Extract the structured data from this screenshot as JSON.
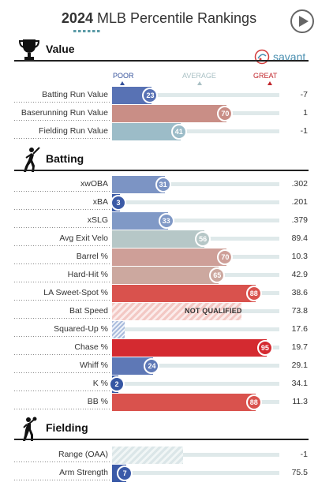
{
  "header": {
    "year": "2024",
    "title_rest": " MLB Percentile Rankings"
  },
  "savant": {
    "label": "savant"
  },
  "scale": {
    "poor": "POOR",
    "average": "AVERAGE",
    "great": "GREAT"
  },
  "sections": [
    {
      "title": "Value",
      "icon": "trophy-icon",
      "rows": [
        {
          "label": "Batting Run Value",
          "percentile": 23,
          "value": "-7",
          "color": "#5872b4"
        },
        {
          "label": "Baserunning Run Value",
          "percentile": 70,
          "value": "1",
          "color": "#c98e86"
        },
        {
          "label": "Fielding Run Value",
          "percentile": 41,
          "value": "-1",
          "color": "#9cbcc8"
        }
      ]
    },
    {
      "title": "Batting",
      "icon": "batter-icon",
      "rows": [
        {
          "label": "xwOBA",
          "percentile": 31,
          "value": ".302",
          "color": "#7c94c4"
        },
        {
          "label": "xBA",
          "percentile": 3,
          "value": ".201",
          "color": "#3b5aa6"
        },
        {
          "label": "xSLG",
          "percentile": 33,
          "value": ".379",
          "color": "#8099c6"
        },
        {
          "label": "Avg Exit Velo",
          "percentile": 56,
          "value": "89.4",
          "color": "#b6c7c7"
        },
        {
          "label": "Barrel %",
          "percentile": 70,
          "value": "10.3",
          "color": "#ce9f98"
        },
        {
          "label": "Hard-Hit %",
          "percentile": 65,
          "value": "42.9",
          "color": "#cca89f"
        },
        {
          "label": "LA Sweet-Spot %",
          "percentile": 88,
          "value": "38.6",
          "color": "#d9524d"
        },
        {
          "label": "Bat Speed",
          "percentile": null,
          "value": "73.8",
          "status": "NOT QUALIFIED"
        },
        {
          "label": "Squared-Up %",
          "percentile": null,
          "value": "17.6",
          "status": ""
        },
        {
          "label": "Chase %",
          "percentile": 95,
          "value": "19.7",
          "color": "#d42a30"
        },
        {
          "label": "Whiff %",
          "percentile": 24,
          "value": "29.1",
          "color": "#5e78b6"
        },
        {
          "label": "K %",
          "percentile": 2,
          "value": "34.1",
          "color": "#3556a3"
        },
        {
          "label": "BB %",
          "percentile": 88,
          "value": "11.3",
          "color": "#d9524d"
        }
      ]
    },
    {
      "title": "Fielding",
      "icon": "fielder-icon",
      "rows": [
        {
          "label": "Range (OAA)",
          "percentile": null,
          "value": "-1",
          "status": ""
        },
        {
          "label": "Arm Strength",
          "percentile": 7,
          "value": "75.5",
          "color": "#3a5aa8"
        }
      ]
    }
  ]
}
